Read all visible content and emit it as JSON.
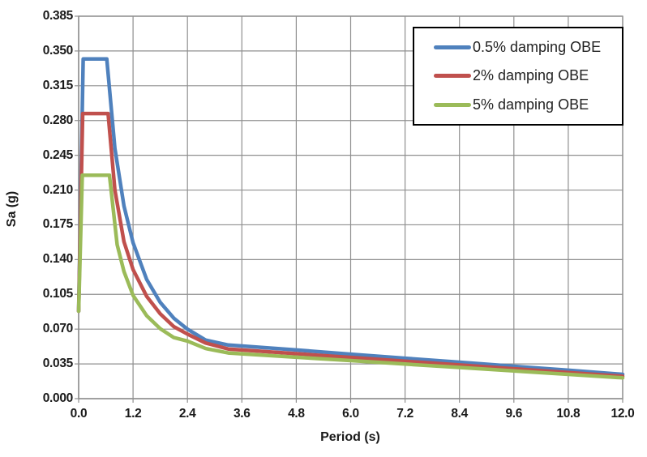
{
  "chart_data": {
    "type": "line",
    "title": "",
    "xlabel": "Period (s)",
    "ylabel": "Sa (g)",
    "xlim": [
      0,
      12
    ],
    "ylim": [
      0,
      0.385
    ],
    "x_tick_step": 1.2,
    "y_tick_step": 0.035,
    "x_tick_labels": [
      "0.0",
      "1.2",
      "2.4",
      "3.6",
      "4.8",
      "6.0",
      "7.2",
      "8.4",
      "9.6",
      "10.8",
      "12.0"
    ],
    "y_tick_labels": [
      "0.000",
      "0.035",
      "0.070",
      "0.105",
      "0.140",
      "0.175",
      "0.210",
      "0.245",
      "0.280",
      "0.315",
      "0.350",
      "0.385"
    ],
    "grid": true,
    "legend_position": "top-right",
    "colors": {
      "background": "#ffffff",
      "gridline": "#8f8f8f",
      "plot_border": "#a8a8a8",
      "legend_border": "#000000",
      "text": "#1a1a1a",
      "series_blue": "#4F81BD",
      "series_red": "#C0504D",
      "series_green": "#9BBB59"
    },
    "series": [
      {
        "name": "0.5% damping OBE",
        "color": "#4F81BD",
        "points": [
          [
            0,
            0.088
          ],
          [
            0.1,
            0.342
          ],
          [
            0.62,
            0.342
          ],
          [
            0.8,
            0.252
          ],
          [
            1.0,
            0.194
          ],
          [
            1.2,
            0.157
          ],
          [
            1.5,
            0.12
          ],
          [
            1.8,
            0.097
          ],
          [
            2.1,
            0.081
          ],
          [
            2.4,
            0.07
          ],
          [
            2.8,
            0.059
          ],
          [
            3.3,
            0.054
          ],
          [
            4.8,
            0.049
          ],
          [
            6.0,
            0.0448
          ],
          [
            7.2,
            0.0407
          ],
          [
            8.4,
            0.0367
          ],
          [
            9.6,
            0.0326
          ],
          [
            10.8,
            0.0286
          ],
          [
            12.0,
            0.0245
          ]
        ]
      },
      {
        "name": "2% damping OBE",
        "color": "#C0504D",
        "points": [
          [
            0,
            0.088
          ],
          [
            0.09,
            0.287
          ],
          [
            0.65,
            0.287
          ],
          [
            0.8,
            0.21
          ],
          [
            1.0,
            0.158
          ],
          [
            1.2,
            0.13
          ],
          [
            1.5,
            0.103
          ],
          [
            1.8,
            0.0855
          ],
          [
            2.1,
            0.0725
          ],
          [
            2.4,
            0.065
          ],
          [
            2.8,
            0.056
          ],
          [
            3.3,
            0.05
          ],
          [
            4.8,
            0.0453
          ],
          [
            6.0,
            0.0415
          ],
          [
            7.2,
            0.0377
          ],
          [
            8.4,
            0.0339
          ],
          [
            9.6,
            0.0301
          ],
          [
            10.8,
            0.0263
          ],
          [
            12.0,
            0.0225
          ]
        ]
      },
      {
        "name": "5% damping OBE",
        "color": "#9BBB59",
        "points": [
          [
            0,
            0.088
          ],
          [
            0.08,
            0.225
          ],
          [
            0.68,
            0.225
          ],
          [
            0.85,
            0.155
          ],
          [
            1.0,
            0.128
          ],
          [
            1.2,
            0.104
          ],
          [
            1.5,
            0.0835
          ],
          [
            1.8,
            0.0705
          ],
          [
            2.1,
            0.0615
          ],
          [
            2.4,
            0.058
          ],
          [
            2.8,
            0.0505
          ],
          [
            3.3,
            0.046
          ],
          [
            4.8,
            0.0417
          ],
          [
            6.0,
            0.0383
          ],
          [
            7.2,
            0.0348
          ],
          [
            8.4,
            0.0314
          ],
          [
            9.6,
            0.0279
          ],
          [
            10.8,
            0.0245
          ],
          [
            12.0,
            0.021
          ]
        ]
      }
    ]
  }
}
